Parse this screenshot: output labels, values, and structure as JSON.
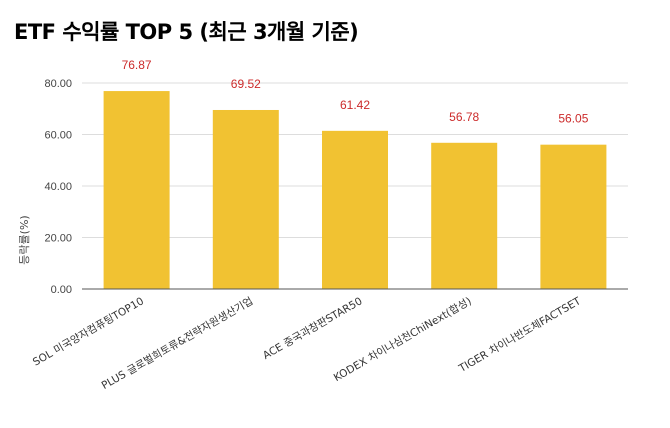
{
  "chart_data": {
    "type": "bar",
    "title": "ETF 수익률 TOP 5 (최근 3개월 기준)",
    "xlabel": "",
    "ylabel": "등락률(%)",
    "categories": [
      "SOL 미국양자컴퓨팅TOP10",
      "PLUS 글로벌희토류&전략자원생산기업",
      "ACE 중국과창판STAR50",
      "KODEX 차이나심천ChiNext(합성)",
      "TIGER 차이나반도체FACTSET"
    ],
    "values": [
      76.87,
      69.52,
      61.42,
      56.78,
      56.05
    ],
    "data_labels": [
      "76.87",
      "69.52",
      "61.42",
      "56.78",
      "56.05"
    ],
    "ylim": [
      0,
      80
    ],
    "yticks": [
      "0.00",
      "20.00",
      "40.00",
      "60.00",
      "80.00"
    ],
    "grid": true,
    "legend": "none",
    "colors": {
      "bar": "#F1C232",
      "data_label": "#CC2B2B"
    }
  }
}
